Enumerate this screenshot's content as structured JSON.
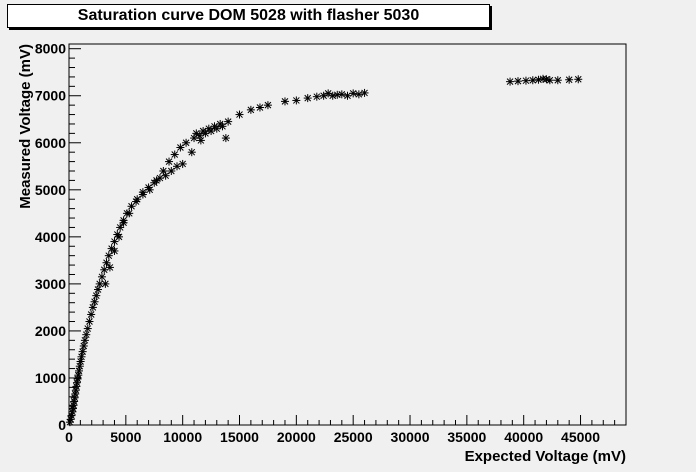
{
  "chart_data": {
    "type": "scatter",
    "title": "Saturation curve DOM 5028 with flasher 5030",
    "xlabel": "Expected Voltage (mV)",
    "ylabel": "Measured Voltage (mV)",
    "xlim": [
      0,
      49000
    ],
    "ylim": [
      0,
      8100
    ],
    "xticks": [
      0,
      5000,
      10000,
      15000,
      20000,
      25000,
      30000,
      35000,
      40000,
      45000
    ],
    "yticks": [
      0,
      1000,
      2000,
      3000,
      4000,
      5000,
      6000,
      7000,
      8000
    ],
    "marker": "star",
    "grid": false,
    "points": [
      [
        80,
        60
      ],
      [
        150,
        120
      ],
      [
        220,
        200
      ],
      [
        300,
        280
      ],
      [
        350,
        350
      ],
      [
        400,
        420
      ],
      [
        450,
        500
      ],
      [
        500,
        580
      ],
      [
        550,
        660
      ],
      [
        600,
        740
      ],
      [
        650,
        820
      ],
      [
        700,
        900
      ],
      [
        760,
        980
      ],
      [
        820,
        1060
      ],
      [
        880,
        1150
      ],
      [
        950,
        1250
      ],
      [
        1020,
        1350
      ],
      [
        1100,
        1450
      ],
      [
        1200,
        1560
      ],
      [
        1300,
        1680
      ],
      [
        1400,
        1800
      ],
      [
        1520,
        1920
      ],
      [
        1650,
        2050
      ],
      [
        1800,
        2200
      ],
      [
        1950,
        2350
      ],
      [
        2100,
        2500
      ],
      [
        2250,
        2620
      ],
      [
        2400,
        2750
      ],
      [
        2550,
        2880
      ],
      [
        2700,
        3000
      ],
      [
        2900,
        3150
      ],
      [
        3100,
        3300
      ],
      [
        3300,
        3450
      ],
      [
        3500,
        3600
      ],
      [
        3750,
        3750
      ],
      [
        4000,
        3900
      ],
      [
        4250,
        4050
      ],
      [
        4500,
        4200
      ],
      [
        4800,
        4350
      ],
      [
        5100,
        4500
      ],
      [
        5500,
        4650
      ],
      [
        6000,
        4800
      ],
      [
        6500,
        4950
      ],
      [
        7000,
        5050
      ],
      [
        7500,
        5150
      ],
      [
        8000,
        5250
      ],
      [
        8500,
        5300
      ],
      [
        9000,
        5400
      ],
      [
        9500,
        5500
      ],
      [
        10000,
        5550
      ],
      [
        3200,
        3000
      ],
      [
        3600,
        3350
      ],
      [
        4000,
        3700
      ],
      [
        4400,
        4000
      ],
      [
        4800,
        4300
      ],
      [
        5300,
        4500
      ],
      [
        5900,
        4750
      ],
      [
        6500,
        4900
      ],
      [
        7100,
        5000
      ],
      [
        7700,
        5200
      ],
      [
        8300,
        5400
      ],
      [
        8800,
        5600
      ],
      [
        9300,
        5750
      ],
      [
        9800,
        5900
      ],
      [
        10300,
        6000
      ],
      [
        11000,
        6100
      ],
      [
        11500,
        6150
      ],
      [
        12000,
        6200
      ],
      [
        12500,
        6250
      ],
      [
        13000,
        6300
      ],
      [
        13500,
        6350
      ],
      [
        14000,
        6450
      ],
      [
        11200,
        6200
      ],
      [
        11800,
        6250
      ],
      [
        12300,
        6300
      ],
      [
        12800,
        6350
      ],
      [
        13300,
        6400
      ],
      [
        10800,
        5800
      ],
      [
        11600,
        6050
      ],
      [
        13800,
        6100
      ],
      [
        15000,
        6600
      ],
      [
        16000,
        6700
      ],
      [
        16800,
        6750
      ],
      [
        17500,
        6800
      ],
      [
        19000,
        6880
      ],
      [
        20000,
        6900
      ],
      [
        21000,
        6950
      ],
      [
        21800,
        6980
      ],
      [
        22400,
        7000
      ],
      [
        22800,
        7050
      ],
      [
        23200,
        7000
      ],
      [
        23600,
        7020
      ],
      [
        24000,
        7030
      ],
      [
        24500,
        7000
      ],
      [
        25000,
        7050
      ],
      [
        25500,
        7030
      ],
      [
        26000,
        7060
      ],
      [
        38800,
        7300
      ],
      [
        39500,
        7310
      ],
      [
        40200,
        7320
      ],
      [
        40800,
        7330
      ],
      [
        41300,
        7340
      ],
      [
        41700,
        7360
      ],
      [
        42000,
        7350
      ],
      [
        42300,
        7330
      ],
      [
        43000,
        7330
      ],
      [
        44000,
        7340
      ],
      [
        44800,
        7350
      ]
    ]
  }
}
